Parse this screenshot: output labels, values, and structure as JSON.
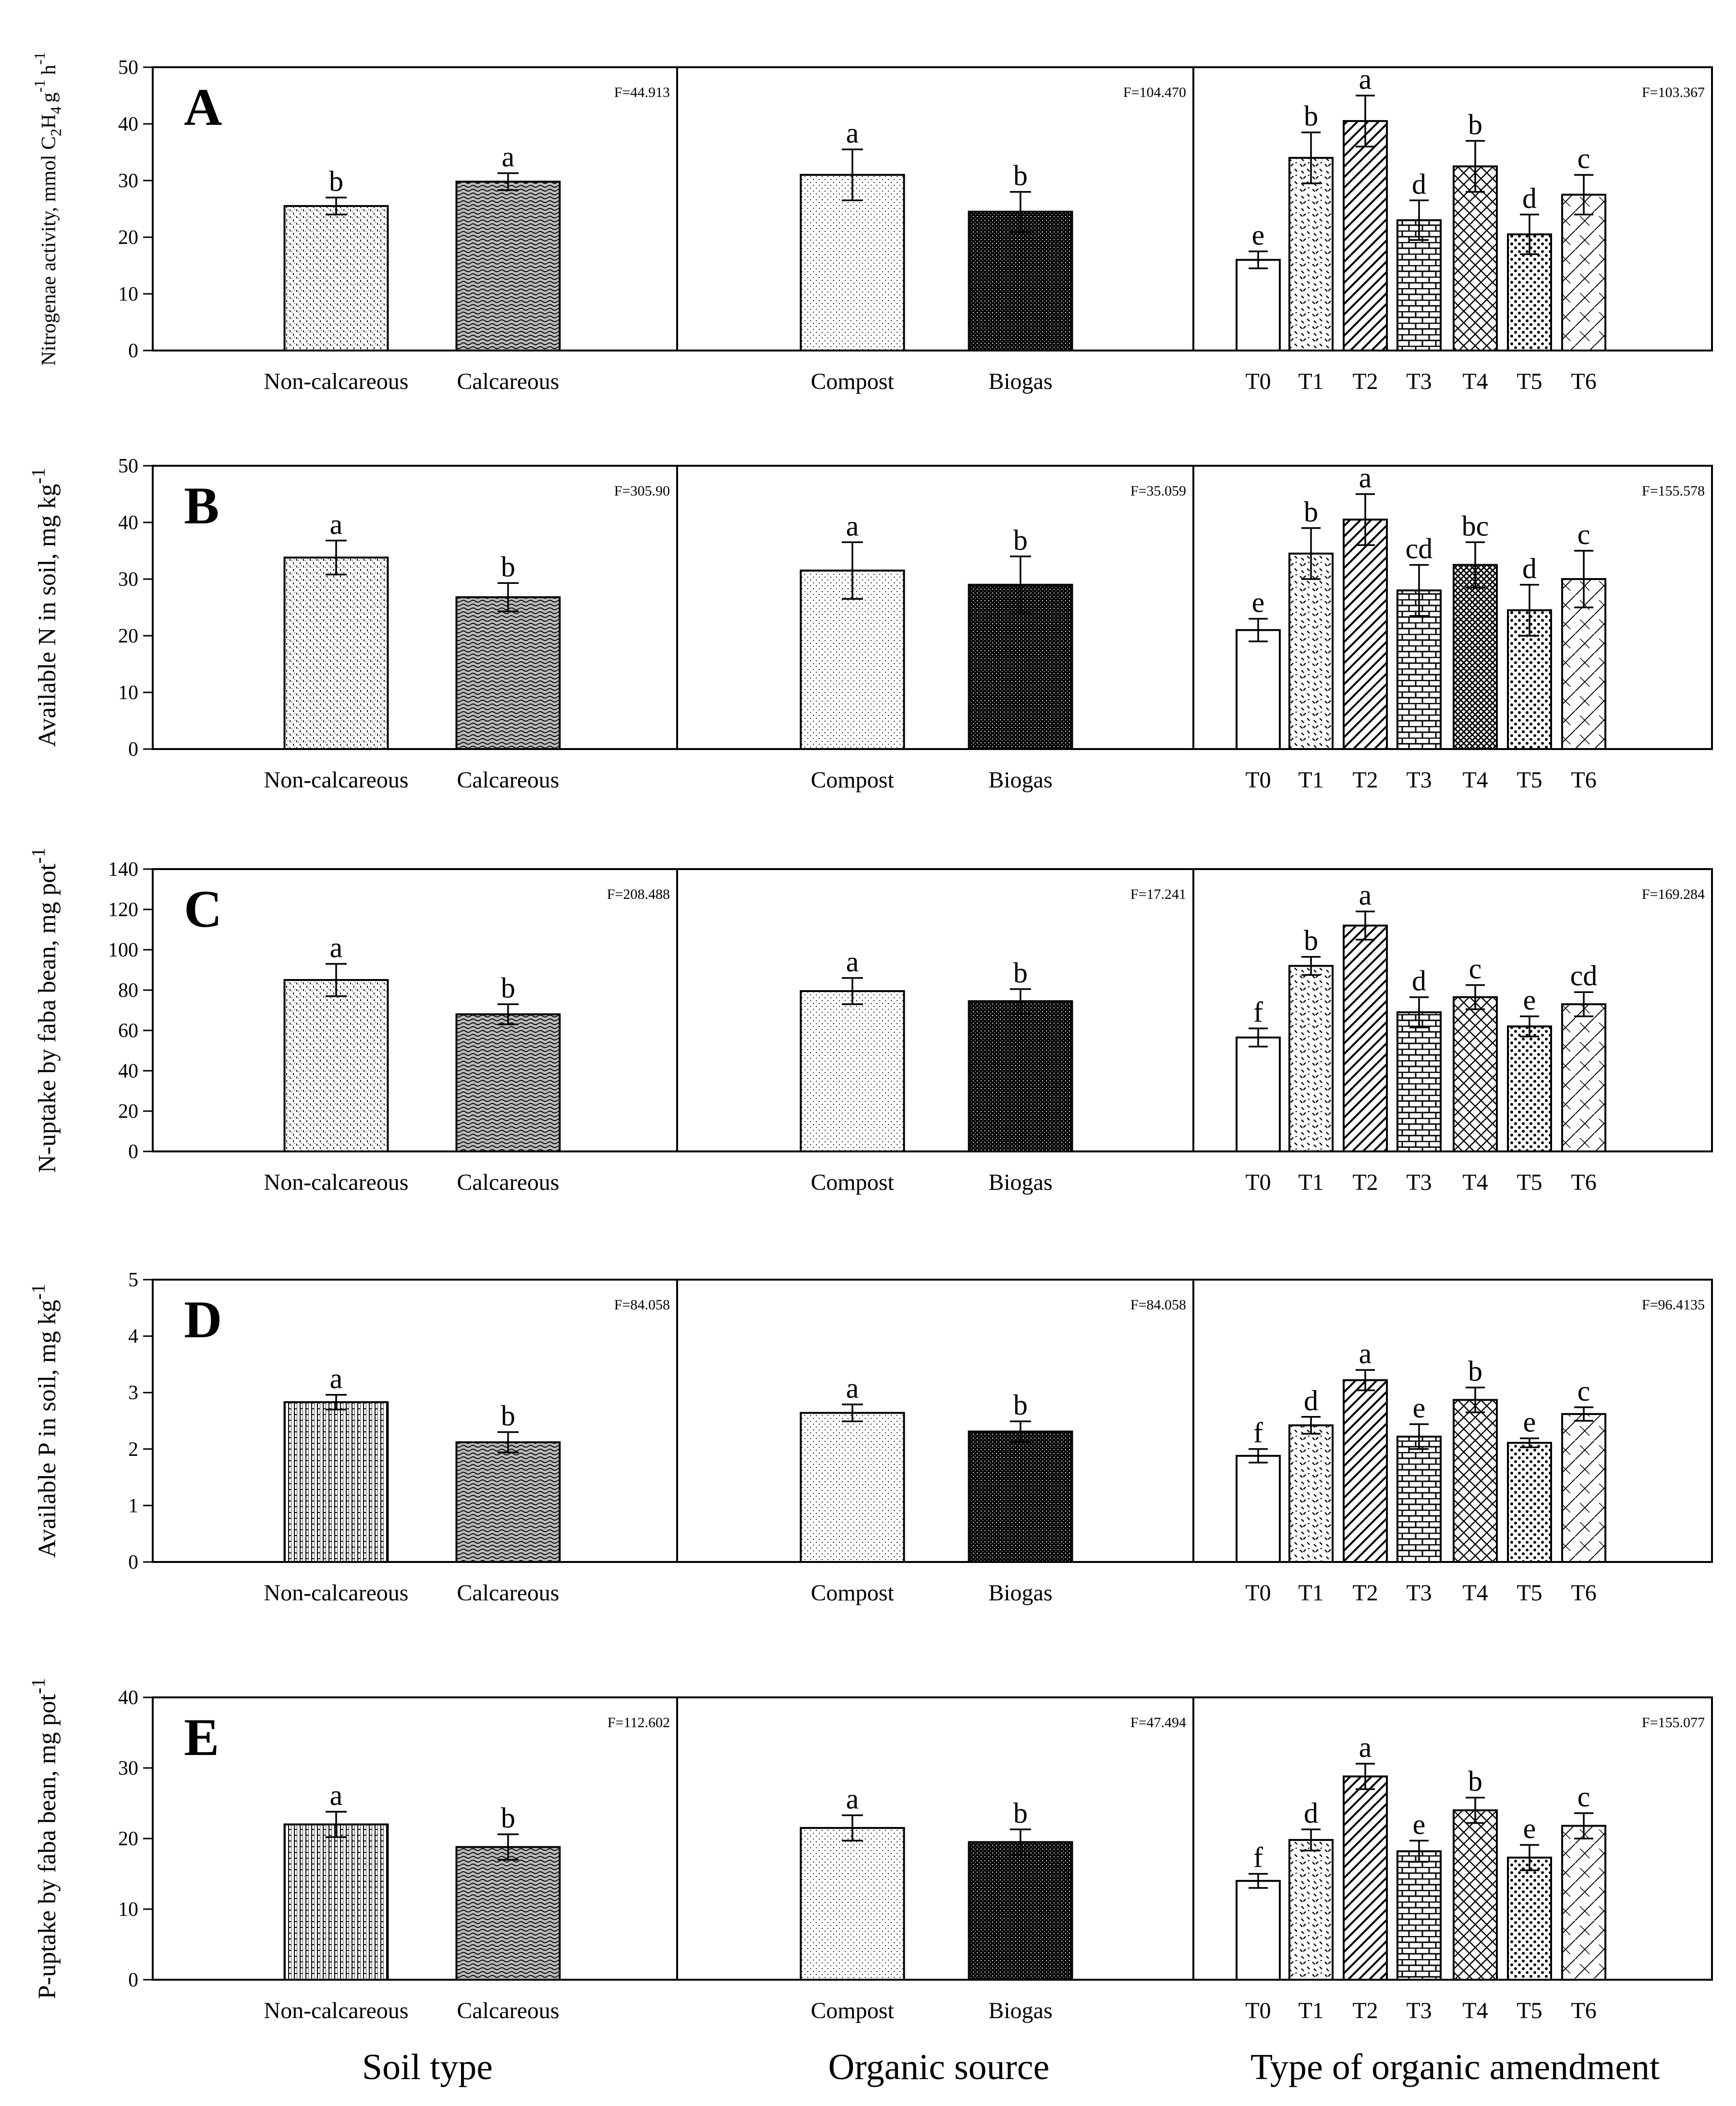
{
  "chart_data": [
    {
      "type": "bar",
      "panel_letter": "A",
      "ylabel": "Nitrogenae activity, mmol C",
      "ylabel_sub": [
        "2",
        "4"
      ],
      "ylabel_mid": "H",
      "ylabel_tail": "g",
      "ylabel_tail2": "h",
      "ylabel_sup": [
        "-1",
        "-1"
      ],
      "ylim": [
        0,
        50
      ],
      "yticks": [
        "0",
        "10",
        "20",
        "30",
        "40",
        "50"
      ],
      "groups": [
        {
          "f": "F=44.913",
          "bars": [
            {
              "label": "Non-calcareous",
              "value": 25.5,
              "err": 1.5,
              "letter": "b",
              "pattern": "p-noncalc"
            },
            {
              "label": "Calcareous",
              "value": 29.8,
              "err": 1.5,
              "letter": "a",
              "pattern": "p-calc"
            }
          ]
        },
        {
          "f": "F=104.470",
          "bars": [
            {
              "label": "Compost",
              "value": 31.0,
              "err": 4.5,
              "letter": "a",
              "pattern": "p-compost"
            },
            {
              "label": "Biogas",
              "value": 24.5,
              "err": 3.5,
              "letter": "b",
              "pattern": "p-biogas"
            }
          ]
        },
        {
          "f": "F=103.367",
          "bars": [
            {
              "label": "T0",
              "value": 16.0,
              "err": 1.5,
              "letter": "e",
              "pattern": "p-t0"
            },
            {
              "label": "T1",
              "value": 34.0,
              "err": 4.5,
              "letter": "b",
              "pattern": "p-t1"
            },
            {
              "label": "T2",
              "value": 40.5,
              "err": 4.5,
              "letter": "a",
              "pattern": "p-t2"
            },
            {
              "label": "T3",
              "value": 23.0,
              "err": 3.5,
              "letter": "d",
              "pattern": "p-t3"
            },
            {
              "label": "T4",
              "value": 32.5,
              "err": 4.5,
              "letter": "b",
              "pattern": "p-t4"
            },
            {
              "label": "T5",
              "value": 20.5,
              "err": 3.5,
              "letter": "d",
              "pattern": "p-t5"
            },
            {
              "label": "T6",
              "value": 27.5,
              "err": 3.5,
              "letter": "c",
              "pattern": "p-t6"
            }
          ]
        }
      ]
    },
    {
      "type": "bar",
      "panel_letter": "B",
      "ylabel": "Available N in soil, mg kg",
      "ylabel_sup": [
        "-1"
      ],
      "ylim": [
        0,
        50
      ],
      "yticks": [
        "0",
        "10",
        "20",
        "30",
        "40",
        "50"
      ],
      "groups": [
        {
          "f": "F=305.90",
          "bars": [
            {
              "label": "Non-calcareous",
              "value": 33.8,
              "err": 3.0,
              "letter": "a",
              "pattern": "p-noncalc"
            },
            {
              "label": "Calcareous",
              "value": 26.8,
              "err": 2.5,
              "letter": "b",
              "pattern": "p-calc"
            }
          ]
        },
        {
          "f": "F=35.059",
          "bars": [
            {
              "label": "Compost",
              "value": 31.5,
              "err": 5.0,
              "letter": "a",
              "pattern": "p-compost"
            },
            {
              "label": "Biogas",
              "value": 29.0,
              "err": 5.0,
              "letter": "b",
              "pattern": "p-biogas"
            }
          ]
        },
        {
          "f": "F=155.578",
          "bars": [
            {
              "label": "T0",
              "value": 21.0,
              "err": 2.0,
              "letter": "e",
              "pattern": "p-t0"
            },
            {
              "label": "T1",
              "value": 34.5,
              "err": 4.5,
              "letter": "b",
              "pattern": "p-t1"
            },
            {
              "label": "T2",
              "value": 40.5,
              "err": 4.5,
              "letter": "a",
              "pattern": "p-t2"
            },
            {
              "label": "T3",
              "value": 28.0,
              "err": 4.5,
              "letter": "cd",
              "pattern": "p-t3"
            },
            {
              "label": "T4",
              "value": 32.5,
              "err": 4.0,
              "letter": "bc",
              "pattern": "p-t4b"
            },
            {
              "label": "T5",
              "value": 24.5,
              "err": 4.5,
              "letter": "d",
              "pattern": "p-t5"
            },
            {
              "label": "T6",
              "value": 30.0,
              "err": 5.0,
              "letter": "c",
              "pattern": "p-t6"
            }
          ]
        }
      ]
    },
    {
      "type": "bar",
      "panel_letter": "C",
      "ylabel": "N-uptake by faba bean, mg pot",
      "ylabel_sup": [
        "-1"
      ],
      "ylim": [
        0,
        140
      ],
      "yticks": [
        "0",
        "20",
        "40",
        "60",
        "80",
        "100",
        "120",
        "140"
      ],
      "groups": [
        {
          "f": "F=208.488",
          "bars": [
            {
              "label": "Non-calcareous",
              "value": 85.0,
              "err": 8.0,
              "letter": "a",
              "pattern": "p-noncalc"
            },
            {
              "label": "Calcareous",
              "value": 68.0,
              "err": 5.0,
              "letter": "b",
              "pattern": "p-calc"
            }
          ]
        },
        {
          "f": "F=17.241",
          "bars": [
            {
              "label": "Compost",
              "value": 79.5,
              "err": 6.5,
              "letter": "a",
              "pattern": "p-compost"
            },
            {
              "label": "Biogas",
              "value": 74.5,
              "err": 6.0,
              "letter": "b",
              "pattern": "p-biogas"
            }
          ]
        },
        {
          "f": "F=169.284",
          "bars": [
            {
              "label": "T0",
              "value": 56.5,
              "err": 4.5,
              "letter": "f",
              "pattern": "p-t0"
            },
            {
              "label": "T1",
              "value": 92.0,
              "err": 4.5,
              "letter": "b",
              "pattern": "p-t1"
            },
            {
              "label": "T2",
              "value": 112.0,
              "err": 7.0,
              "letter": "a",
              "pattern": "p-t2"
            },
            {
              "label": "T3",
              "value": 69.0,
              "err": 7.5,
              "letter": "d",
              "pattern": "p-t3"
            },
            {
              "label": "T4",
              "value": 76.5,
              "err": 6.0,
              "letter": "c",
              "pattern": "p-t4"
            },
            {
              "label": "T5",
              "value": 62.0,
              "err": 5.0,
              "letter": "e",
              "pattern": "p-t5"
            },
            {
              "label": "T6",
              "value": 73.0,
              "err": 6.0,
              "letter": "cd",
              "pattern": "p-t6"
            }
          ]
        }
      ]
    },
    {
      "type": "bar",
      "panel_letter": "D",
      "ylabel": "Available P in soil, mg kg",
      "ylabel_sup": [
        "-1"
      ],
      "ylim": [
        0,
        5
      ],
      "yticks": [
        "0",
        "1",
        "2",
        "3",
        "4",
        "5"
      ],
      "groups": [
        {
          "f": "F=84.058",
          "bars": [
            {
              "label": "Non-calcareous",
              "value": 2.83,
              "err": 0.13,
              "letter": "a",
              "pattern": "p-noncalc2"
            },
            {
              "label": "Calcareous",
              "value": 2.12,
              "err": 0.18,
              "letter": "b",
              "pattern": "p-calc"
            }
          ]
        },
        {
          "f": "F=84.058",
          "bars": [
            {
              "label": "Compost",
              "value": 2.64,
              "err": 0.15,
              "letter": "a",
              "pattern": "p-compost"
            },
            {
              "label": "Biogas",
              "value": 2.31,
              "err": 0.18,
              "letter": "b",
              "pattern": "p-biogas"
            }
          ]
        },
        {
          "f": "F=96.4135",
          "bars": [
            {
              "label": "T0",
              "value": 1.88,
              "err": 0.12,
              "letter": "f",
              "pattern": "p-t0"
            },
            {
              "label": "T1",
              "value": 2.42,
              "err": 0.15,
              "letter": "d",
              "pattern": "p-t1"
            },
            {
              "label": "T2",
              "value": 3.22,
              "err": 0.18,
              "letter": "a",
              "pattern": "p-t2"
            },
            {
              "label": "T3",
              "value": 2.22,
              "err": 0.22,
              "letter": "e",
              "pattern": "p-t3"
            },
            {
              "label": "T4",
              "value": 2.87,
              "err": 0.22,
              "letter": "b",
              "pattern": "p-t4"
            },
            {
              "label": "T5",
              "value": 2.11,
              "err": 0.08,
              "letter": "e",
              "pattern": "p-t5"
            },
            {
              "label": "T6",
              "value": 2.62,
              "err": 0.12,
              "letter": "c",
              "pattern": "p-t6"
            }
          ]
        }
      ]
    },
    {
      "type": "bar",
      "panel_letter": "E",
      "ylabel": "P-uptake by faba bean, mg pot",
      "ylabel_sup": [
        "-1"
      ],
      "ylim": [
        0,
        40
      ],
      "yticks": [
        "0",
        "10",
        "20",
        "30",
        "40"
      ],
      "groups": [
        {
          "f": "F=112.602",
          "bars": [
            {
              "label": "Non-calcareous",
              "value": 22.0,
              "err": 1.8,
              "letter": "a",
              "pattern": "p-noncalc2"
            },
            {
              "label": "Calcareous",
              "value": 18.8,
              "err": 1.8,
              "letter": "b",
              "pattern": "p-calc"
            }
          ]
        },
        {
          "f": "F=47.494",
          "bars": [
            {
              "label": "Compost",
              "value": 21.5,
              "err": 1.8,
              "letter": "a",
              "pattern": "p-compost"
            },
            {
              "label": "Biogas",
              "value": 19.5,
              "err": 1.8,
              "letter": "b",
              "pattern": "p-biogas"
            }
          ]
        },
        {
          "f": "F=155.077",
          "bars": [
            {
              "label": "T0",
              "value": 14.0,
              "err": 1.0,
              "letter": "f",
              "pattern": "p-t0"
            },
            {
              "label": "T1",
              "value": 19.8,
              "err": 1.5,
              "letter": "d",
              "pattern": "p-t1"
            },
            {
              "label": "T2",
              "value": 28.8,
              "err": 1.8,
              "letter": "a",
              "pattern": "p-t2"
            },
            {
              "label": "T3",
              "value": 18.2,
              "err": 1.5,
              "letter": "e",
              "pattern": "p-t3"
            },
            {
              "label": "T4",
              "value": 24.0,
              "err": 1.8,
              "letter": "b",
              "pattern": "p-t4"
            },
            {
              "label": "T5",
              "value": 17.3,
              "err": 1.8,
              "letter": "e",
              "pattern": "p-t5"
            },
            {
              "label": "T6",
              "value": 21.8,
              "err": 1.8,
              "letter": "c",
              "pattern": "p-t6"
            }
          ]
        }
      ]
    }
  ],
  "group_titles": [
    "Soil type",
    "Organic source",
    "Type of organic amendment"
  ]
}
